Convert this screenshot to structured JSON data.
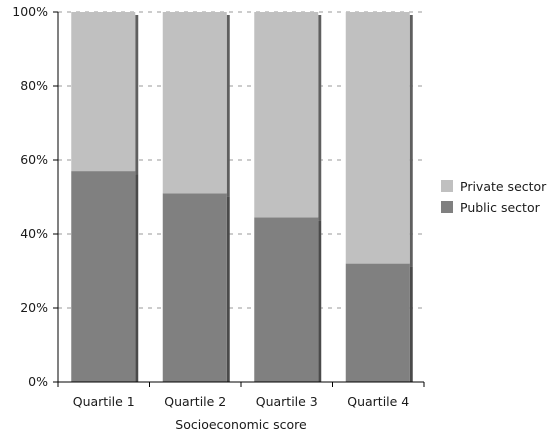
{
  "chart_data": {
    "type": "bar",
    "stacked": true,
    "percent_stacked": true,
    "categories": [
      "Quartile 1",
      "Quartile 2",
      "Quartile 3",
      "Quartile 4"
    ],
    "series": [
      {
        "name": "Public sector",
        "values": [
          57,
          51,
          44.5,
          32
        ],
        "color": "#808080"
      },
      {
        "name": "Private sector",
        "values": [
          43,
          49,
          55.5,
          68
        ],
        "color": "#c0c0c0"
      }
    ],
    "ylim": [
      0,
      100
    ],
    "yticks": [
      "0%",
      "20%",
      "40%",
      "60%",
      "80%",
      "100%"
    ],
    "xlabel": "Socioeconomic score",
    "ylabel": "",
    "title": "",
    "grid": true,
    "legend_position": "right",
    "legend_order": [
      "Private sector",
      "Public sector"
    ]
  }
}
